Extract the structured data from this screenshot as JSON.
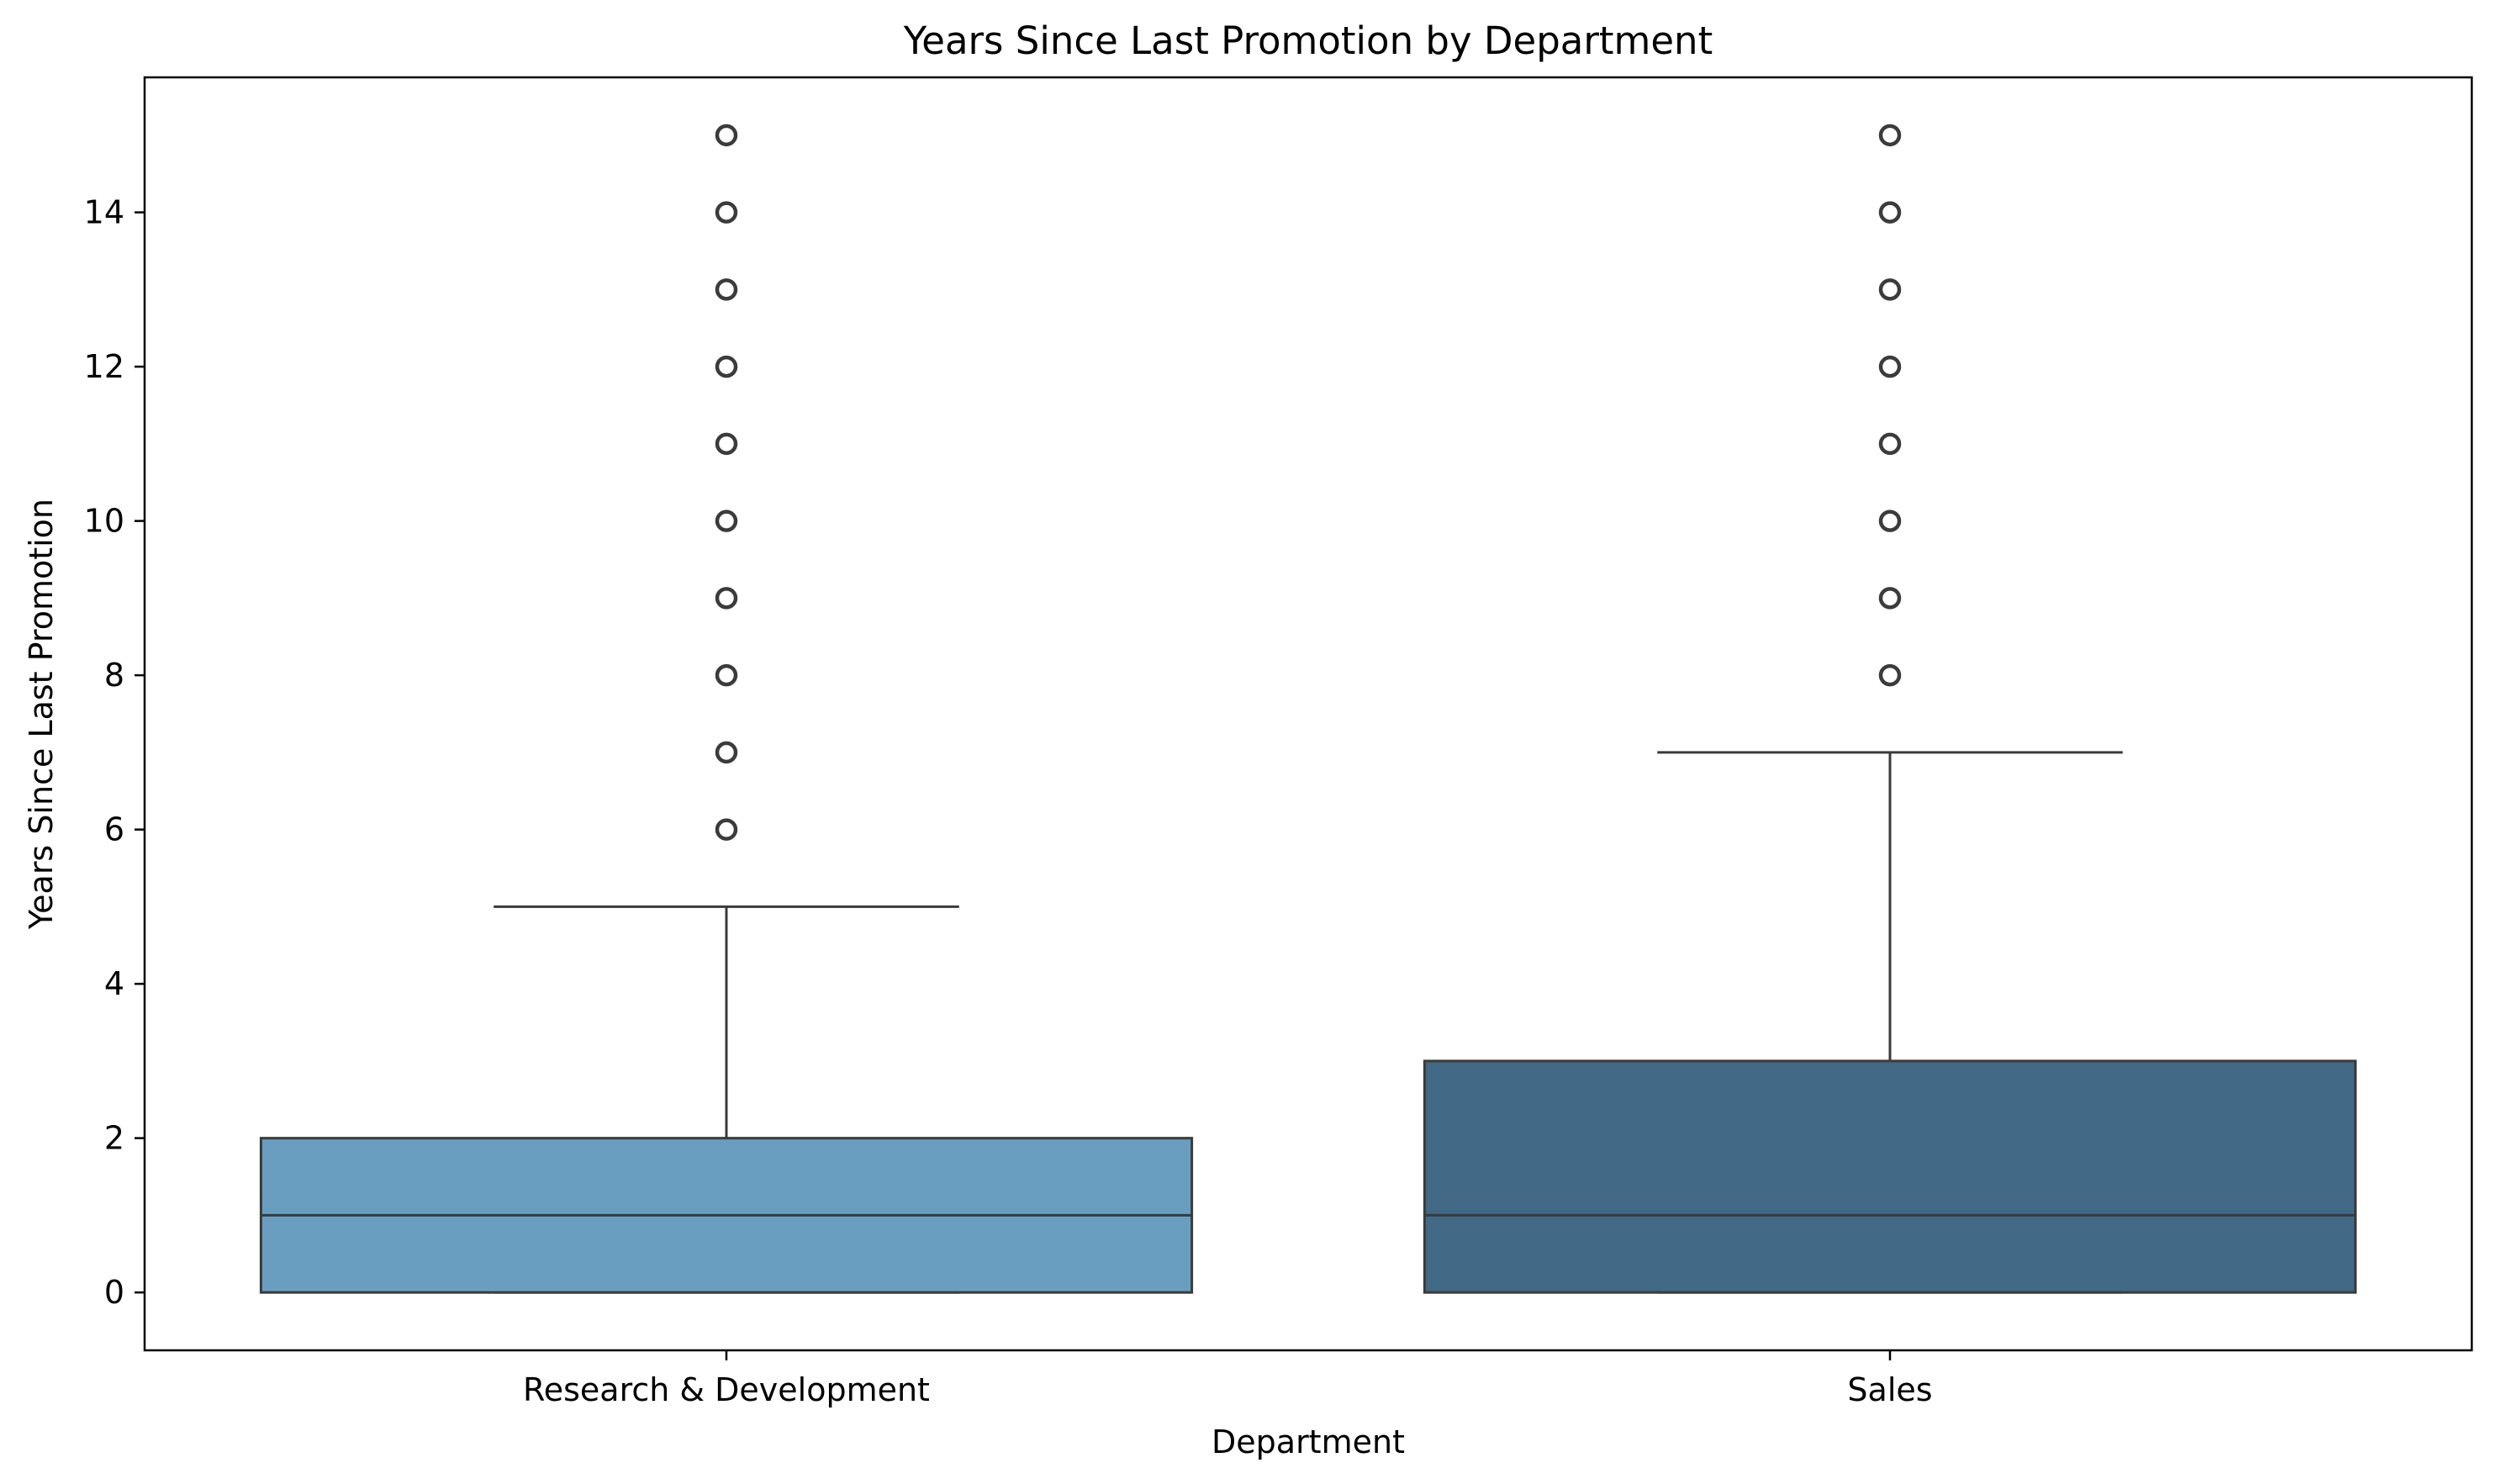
{
  "chart_data": {
    "type": "box",
    "title": "Years Since Last Promotion by Department",
    "xlabel": "Department",
    "ylabel": "Years Since Last Promotion",
    "ylim": [
      -0.75,
      15.75
    ],
    "yticks": [
      0,
      2,
      4,
      6,
      8,
      10,
      12,
      14
    ],
    "categories": [
      "Research & Development",
      "Sales"
    ],
    "boxes": [
      {
        "category": "Research & Development",
        "whisker_low": 0,
        "q1": 0,
        "median": 1,
        "q3": 2,
        "whisker_high": 5,
        "outliers": [
          6,
          7,
          8,
          9,
          10,
          11,
          12,
          13,
          14,
          15
        ],
        "color": "#6a9ec1"
      },
      {
        "category": "Sales",
        "whisker_low": 0,
        "q1": 0,
        "median": 1,
        "q3": 3,
        "whisker_high": 7,
        "outliers": [
          8,
          9,
          10,
          11,
          12,
          13,
          14,
          15
        ],
        "color": "#426985"
      }
    ],
    "line_color": "#3b3b3b",
    "grid": false,
    "legend": "none"
  }
}
